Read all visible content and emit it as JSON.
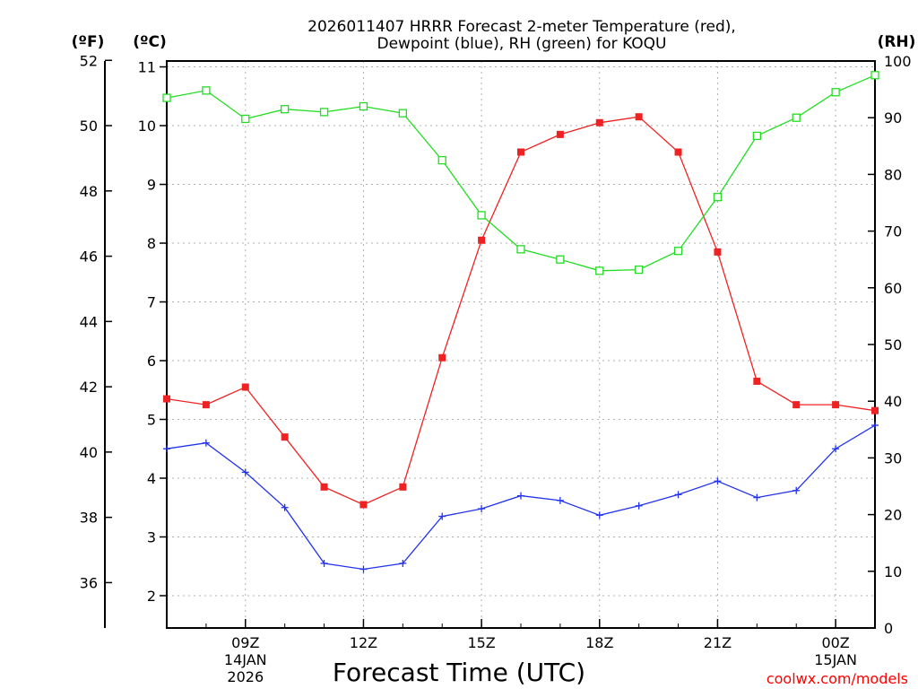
{
  "chart_data": {
    "type": "line",
    "title_line1": "2026011407 HRRR Forecast 2-meter Temperature (red),",
    "title_line2": "Dewpoint (blue), RH (green) for KOQU",
    "left_outer_unit": "(ºF)",
    "left_inner_unit": "(ºC)",
    "right_unit": "(RH)",
    "xlabel": "Forecast Time (UTC)",
    "credit": "coolwx.com/models",
    "celsius_range": [
      1.45,
      11.1
    ],
    "rh_range": [
      0,
      100
    ],
    "celsius_ticks": [
      "2",
      "3",
      "4",
      "5",
      "6",
      "7",
      "8",
      "9",
      "10",
      "11"
    ],
    "fahrenheit_ticks": [
      "36",
      "38",
      "40",
      "42",
      "44",
      "46",
      "48",
      "50",
      "52"
    ],
    "rh_ticks": [
      "0",
      "10",
      "20",
      "30",
      "40",
      "50",
      "60",
      "70",
      "80",
      "90",
      "100"
    ],
    "hours": [
      7,
      8,
      9,
      10,
      11,
      12,
      13,
      14,
      15,
      16,
      17,
      18,
      19,
      20,
      21,
      22,
      23,
      24,
      25
    ],
    "x_ticks": [
      {
        "hour": 9,
        "label": "09Z",
        "date1": "14JAN",
        "date2": "2026"
      },
      {
        "hour": 12,
        "label": "12Z",
        "date1": "",
        "date2": ""
      },
      {
        "hour": 15,
        "label": "15Z",
        "date1": "",
        "date2": ""
      },
      {
        "hour": 18,
        "label": "18Z",
        "date1": "",
        "date2": ""
      },
      {
        "hour": 21,
        "label": "21Z",
        "date1": "",
        "date2": ""
      },
      {
        "hour": 24,
        "label": "00Z",
        "date1": "15JAN",
        "date2": ""
      }
    ],
    "series": [
      {
        "name": "Temperature",
        "axis": "celsius",
        "color": "#ee2222",
        "marker": "filled-square",
        "values": [
          5.35,
          5.25,
          5.55,
          4.7,
          3.85,
          3.55,
          3.85,
          6.05,
          8.05,
          9.55,
          9.85,
          10.05,
          10.15,
          9.55,
          7.85,
          5.65,
          5.25,
          5.25,
          5.15
        ]
      },
      {
        "name": "Dewpoint",
        "axis": "celsius",
        "color": "#2233ee",
        "marker": "plus",
        "values": [
          4.5,
          4.6,
          4.1,
          3.5,
          2.55,
          2.45,
          2.55,
          3.35,
          3.48,
          3.7,
          3.62,
          3.37,
          3.53,
          3.72,
          3.95,
          3.67,
          3.79,
          4.5,
          4.9
        ]
      },
      {
        "name": "RH",
        "axis": "rh",
        "color": "#22dd22",
        "marker": "open-square",
        "values": [
          93.5,
          94.8,
          89.8,
          91.5,
          91.0,
          92.0,
          90.8,
          82.5,
          72.8,
          66.8,
          65.0,
          63.0,
          63.2,
          66.5,
          76.0,
          86.8,
          90.0,
          94.5,
          97.5
        ]
      }
    ]
  }
}
